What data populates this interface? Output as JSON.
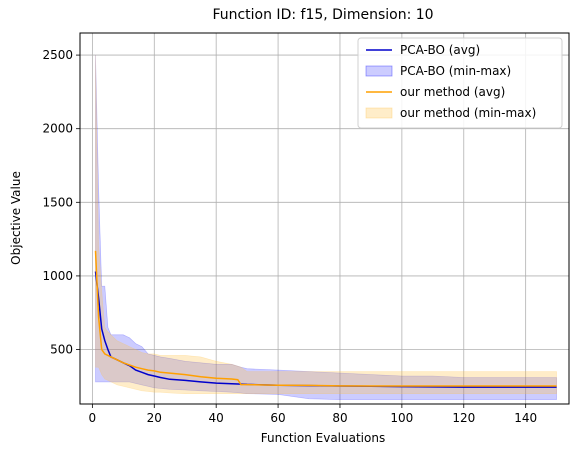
{
  "chart_data": {
    "type": "line",
    "title": "Function ID: f15, Dimension: 10",
    "xlabel": "Function Evaluations",
    "ylabel": "Objective Value",
    "xlim": [
      -4,
      154
    ],
    "ylim": [
      130,
      2650
    ],
    "xticks": [
      0,
      20,
      40,
      60,
      80,
      100,
      120,
      140
    ],
    "yticks": [
      500,
      1000,
      1500,
      2000,
      2500
    ],
    "grid": true,
    "legend_position": "top-right",
    "colors": {
      "pca_line": "#0000cc",
      "pca_fill": "#0000ff",
      "our_line": "#ffa000",
      "our_fill": "#ffc44d"
    },
    "legend": [
      {
        "label": "PCA-BO (avg)",
        "kind": "line",
        "color": "#0000cc"
      },
      {
        "label": "PCA-BO (min-max)",
        "kind": "patch",
        "color": "#0000ff"
      },
      {
        "label": "our method (avg)",
        "kind": "line",
        "color": "#ffa000"
      },
      {
        "label": "our method (min-max)",
        "kind": "patch",
        "color": "#ffc44d"
      }
    ],
    "series": [
      {
        "name": "PCA-BO (avg)",
        "x": [
          1,
          2,
          3,
          4,
          5,
          6,
          8,
          10,
          12,
          14,
          16,
          18,
          20,
          22,
          25,
          30,
          35,
          40,
          45,
          48,
          50,
          60,
          70,
          80,
          90,
          100,
          110,
          120,
          130,
          140,
          150
        ],
        "y": [
          1030,
          850,
          640,
          560,
          500,
          450,
          430,
          410,
          390,
          360,
          345,
          330,
          320,
          310,
          298,
          290,
          280,
          272,
          268,
          265,
          263,
          258,
          255,
          252,
          250,
          248,
          246,
          245,
          245,
          245,
          245
        ]
      },
      {
        "name": "PCA-BO (min-max)",
        "x": [
          1,
          2,
          3,
          4,
          5,
          6,
          8,
          10,
          12,
          14,
          16,
          18,
          20,
          22,
          25,
          30,
          35,
          40,
          45,
          48,
          50,
          60,
          70,
          80,
          90,
          100,
          110,
          120,
          130,
          140,
          150
        ],
        "min": [
          280,
          280,
          280,
          280,
          280,
          280,
          280,
          280,
          280,
          270,
          260,
          250,
          240,
          235,
          230,
          225,
          220,
          215,
          210,
          205,
          200,
          195,
          165,
          160,
          160,
          160,
          160,
          160,
          160,
          160,
          160
        ],
        "max": [
          2500,
          1600,
          930,
          930,
          650,
          600,
          600,
          600,
          580,
          540,
          520,
          470,
          460,
          450,
          440,
          420,
          410,
          400,
          400,
          380,
          370,
          360,
          350,
          340,
          330,
          320,
          320,
          310,
          310,
          310,
          310
        ]
      },
      {
        "name": "our method (avg)",
        "x": [
          1,
          2,
          3,
          4,
          5,
          6,
          8,
          10,
          12,
          14,
          16,
          18,
          20,
          22,
          25,
          30,
          35,
          40,
          45,
          47,
          48,
          50,
          60,
          70,
          80,
          90,
          100,
          110,
          120,
          130,
          140,
          150
        ],
        "y": [
          1170,
          720,
          500,
          470,
          460,
          450,
          430,
          410,
          395,
          380,
          370,
          360,
          355,
          345,
          340,
          330,
          315,
          305,
          300,
          295,
          262,
          262,
          258,
          256,
          253,
          252,
          252,
          252,
          252,
          252,
          252,
          252
        ]
      },
      {
        "name": "our method (min-max)",
        "x": [
          1,
          2,
          3,
          4,
          5,
          6,
          8,
          10,
          12,
          14,
          16,
          18,
          20,
          22,
          25,
          30,
          35,
          40,
          45,
          48,
          50,
          60,
          70,
          80,
          90,
          100,
          110,
          120,
          130,
          140,
          150
        ],
        "min": [
          380,
          380,
          330,
          300,
          290,
          280,
          260,
          250,
          240,
          230,
          220,
          215,
          210,
          210,
          205,
          200,
          200,
          200,
          200,
          200,
          200,
          200,
          200,
          200,
          200,
          200,
          200,
          200,
          200,
          200,
          200
        ],
        "max": [
          2500,
          1200,
          900,
          650,
          620,
          600,
          560,
          540,
          520,
          500,
          480,
          470,
          470,
          460,
          460,
          460,
          450,
          420,
          400,
          380,
          350,
          350,
          350,
          350,
          350,
          350,
          350,
          350,
          350,
          350,
          350
        ]
      }
    ]
  }
}
